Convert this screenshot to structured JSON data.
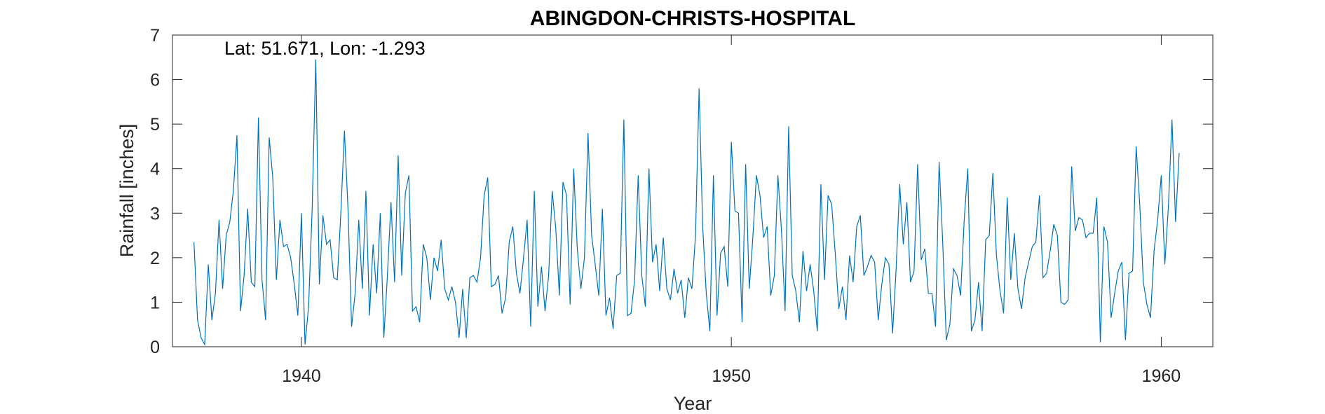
{
  "chart_data": {
    "type": "line",
    "title": "ABINGDON-CHRISTS-HOSPITAL",
    "xlabel": "Year",
    "ylabel": "Rainfall [inches]",
    "annotation": "Lat: 51.671, Lon: -1.293",
    "xlim": [
      1937,
      1961.2
    ],
    "ylim": [
      0,
      7
    ],
    "xticks": [
      1940,
      1950,
      1960
    ],
    "yticks": [
      0,
      1,
      2,
      3,
      4,
      5,
      6,
      7
    ],
    "xtick_labels": [
      "1940",
      "1950",
      "1960"
    ],
    "ytick_labels": [
      "0",
      "1",
      "2",
      "3",
      "4",
      "5",
      "6",
      "7"
    ],
    "series": [
      {
        "color": "#0072BD",
        "x_start": 1937.5,
        "x_step": 0.0833333,
        "values": [
          2.35,
          0.6,
          0.2,
          0.05,
          1.85,
          0.6,
          1.2,
          2.85,
          1.3,
          2.5,
          2.8,
          3.5,
          4.75,
          0.8,
          1.6,
          3.1,
          1.45,
          1.35,
          5.15,
          1.5,
          0.6,
          4.7,
          3.8,
          1.5,
          2.85,
          2.25,
          2.3,
          2.0,
          1.4,
          0.7,
          3.0,
          0.05,
          0.9,
          3.1,
          6.45,
          1.4,
          2.95,
          2.3,
          2.4,
          1.55,
          1.5,
          3.0,
          4.85,
          3.1,
          0.45,
          1.2,
          2.85,
          1.3,
          3.5,
          0.7,
          2.3,
          1.2,
          3.0,
          0.2,
          1.6,
          3.25,
          1.45,
          4.3,
          1.6,
          3.45,
          3.85,
          0.8,
          0.9,
          0.55,
          2.3,
          2.0,
          1.05,
          2.0,
          1.7,
          2.4,
          1.3,
          1.05,
          1.35,
          1.0,
          0.2,
          1.3,
          0.2,
          1.55,
          1.6,
          1.45,
          2.0,
          3.4,
          3.8,
          1.35,
          1.4,
          1.6,
          0.75,
          1.1,
          2.35,
          2.7,
          1.65,
          1.2,
          2.0,
          2.85,
          0.45,
          3.5,
          0.9,
          1.8,
          0.8,
          1.6,
          3.5,
          2.65,
          1.15,
          3.7,
          3.4,
          0.95,
          4.0,
          2.2,
          1.3,
          2.0,
          4.8,
          2.5,
          1.85,
          1.15,
          3.1,
          0.7,
          1.1,
          0.4,
          1.6,
          1.65,
          5.1,
          0.7,
          0.75,
          1.5,
          3.85,
          1.6,
          0.9,
          4.0,
          1.9,
          2.3,
          1.25,
          2.45,
          1.3,
          1.05,
          1.75,
          1.2,
          1.5,
          0.65,
          1.55,
          1.3,
          2.5,
          5.8,
          2.7,
          1.2,
          0.35,
          3.85,
          0.7,
          2.1,
          2.25,
          1.35,
          4.6,
          3.05,
          3.0,
          0.55,
          4.1,
          1.3,
          2.45,
          3.85,
          3.4,
          2.45,
          2.7,
          1.15,
          1.6,
          3.85,
          2.6,
          0.8,
          4.95,
          1.6,
          1.25,
          0.55,
          2.15,
          1.25,
          1.85,
          1.25,
          0.35,
          3.65,
          1.5,
          3.4,
          3.2,
          2.1,
          0.85,
          1.35,
          0.6,
          2.05,
          1.45,
          2.7,
          2.95,
          1.6,
          1.8,
          2.05,
          1.9,
          0.6,
          1.4,
          2.0,
          1.85,
          0.3,
          1.75,
          3.65,
          2.3,
          3.25,
          1.45,
          1.7,
          4.1,
          1.95,
          2.2,
          1.2,
          1.2,
          0.45,
          4.15,
          2.35,
          0.15,
          0.5,
          1.75,
          1.6,
          1.15,
          2.85,
          4.0,
          0.35,
          0.6,
          1.45,
          0.35,
          2.4,
          2.5,
          3.9,
          2.05,
          1.25,
          0.75,
          3.35,
          1.5,
          2.55,
          1.3,
          0.85,
          1.55,
          1.9,
          2.25,
          2.35,
          3.4,
          1.55,
          1.65,
          2.15,
          2.75,
          2.5,
          1.0,
          0.95,
          1.05,
          4.05,
          2.6,
          2.9,
          2.85,
          2.45,
          2.55,
          2.55,
          3.35,
          0.1,
          2.7,
          2.35,
          0.65,
          1.2,
          1.7,
          1.9,
          0.15,
          1.65,
          1.7,
          4.5,
          3.2,
          1.45,
          0.95,
          0.65,
          2.15,
          2.85,
          3.85,
          1.85,
          3.15,
          5.1,
          2.8,
          4.35
        ]
      }
    ]
  }
}
